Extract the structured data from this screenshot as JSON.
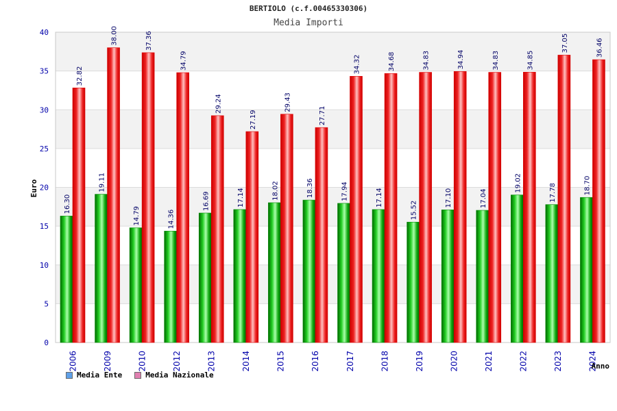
{
  "chart_data": {
    "type": "bar",
    "title": "BERTIOLO (c.f.00465330306)",
    "subtitle": "Media Importi",
    "xlabel": "Anno",
    "ylabel": "Euro",
    "ylim": [
      0,
      40
    ],
    "yticks": [
      0,
      5,
      10,
      15,
      20,
      25,
      30,
      35,
      40
    ],
    "categories": [
      "2006",
      "2009",
      "2010",
      "2012",
      "2013",
      "2014",
      "2015",
      "2016",
      "2017",
      "2018",
      "2019",
      "2020",
      "2021",
      "2022",
      "2023",
      "2024"
    ],
    "series": [
      {
        "name": "Media Ente",
        "color": "#00aa00",
        "values": [
          16.3,
          19.11,
          14.79,
          14.36,
          16.69,
          17.14,
          18.02,
          18.36,
          17.94,
          17.14,
          15.52,
          17.1,
          17.04,
          19.02,
          17.78,
          18.7
        ],
        "labels": [
          "16.30",
          "19.11",
          "14.79",
          "14.36",
          "16.69",
          "17.14",
          "18.02",
          "18.36",
          "17.94",
          "17.14",
          "15.52",
          "17.10",
          "17.04",
          "19.02",
          "17.78",
          "18.70"
        ]
      },
      {
        "name": "Media Nazionale",
        "color": "#ee1111",
        "values": [
          32.82,
          38.0,
          37.36,
          34.79,
          29.24,
          27.19,
          29.43,
          27.71,
          34.32,
          34.68,
          34.83,
          34.94,
          34.83,
          34.85,
          37.05,
          36.46
        ],
        "labels": [
          "32.82",
          "38.00",
          "37.36",
          "34.79",
          "29.24",
          "27.19",
          "29.43",
          "27.71",
          "34.32",
          "34.68",
          "34.83",
          "34.94",
          "34.83",
          "34.85",
          "37.05",
          "36.46"
        ]
      }
    ],
    "legend": [
      {
        "label": "Media Ente",
        "color": "#5fa0e8"
      },
      {
        "label": "Media Nazionale",
        "color": "#e07fb0"
      }
    ],
    "grid": true,
    "legend_position": "bottom-left"
  }
}
